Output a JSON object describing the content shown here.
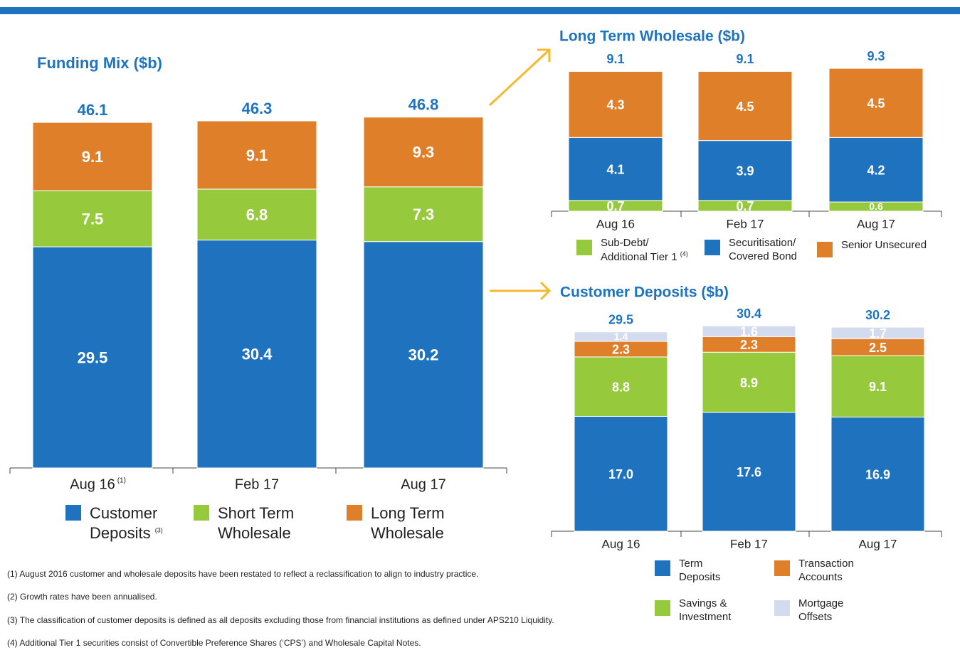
{
  "chart_data": [
    {
      "type": "stacked_bar",
      "title": "Funding Mix ($b)",
      "categories": [
        "Aug 16",
        "Feb 17",
        "Aug 17"
      ],
      "category_notes": [
        "(1)",
        null,
        null
      ],
      "totals": [
        46.1,
        46.3,
        46.8
      ],
      "series": [
        {
          "name": "Customer Deposits",
          "note": "(3)",
          "color": "#1f72bd",
          "values": [
            29.5,
            30.4,
            30.2
          ]
        },
        {
          "name": "Short Term Wholesale",
          "color": "#97c93d",
          "values": [
            7.5,
            6.8,
            7.3
          ]
        },
        {
          "name": "Long Term Wholesale",
          "color": "#e07f2a",
          "values": [
            9.1,
            9.1,
            9.3
          ]
        }
      ]
    },
    {
      "type": "stacked_bar",
      "title": "Long Term Wholesale ($b)",
      "categories": [
        "Aug 16",
        "Feb 17",
        "Aug 17"
      ],
      "totals": [
        9.1,
        9.1,
        9.3
      ],
      "series": [
        {
          "name": "Sub-Debt/ Additional Tier 1",
          "note": "(4)",
          "color": "#97c93d",
          "values": [
            0.7,
            0.7,
            0.6
          ]
        },
        {
          "name": "Securitisation/ Covered Bond",
          "color": "#1f72bd",
          "values": [
            4.1,
            3.9,
            4.2
          ]
        },
        {
          "name": "Senior Unsecured",
          "color": "#e07f2a",
          "values": [
            4.3,
            4.5,
            4.5
          ]
        }
      ]
    },
    {
      "type": "stacked_bar",
      "title": "Customer Deposits ($b)",
      "categories": [
        "Aug 16",
        "Feb 17",
        "Aug 17"
      ],
      "totals": [
        29.5,
        30.4,
        30.2
      ],
      "series": [
        {
          "name": "Term Deposits",
          "color": "#1f72bd",
          "values": [
            17.0,
            17.6,
            16.9
          ],
          "value_labels": [
            "17.0",
            "17.6",
            "16.9"
          ]
        },
        {
          "name": "Savings & Investment",
          "color": "#97c93d",
          "values": [
            8.8,
            8.9,
            9.1
          ]
        },
        {
          "name": "Transaction Accounts",
          "color": "#e07f2a",
          "values": [
            2.3,
            2.3,
            2.5
          ]
        },
        {
          "name": "Mortgage Offsets",
          "color": "#d3dbef",
          "values": [
            1.4,
            1.6,
            1.7
          ]
        }
      ]
    }
  ],
  "footnotes": [
    "(1) August 2016 customer and wholesale deposits have been restated to reflect a reclassification to align to industry practice.",
    "(2) Growth rates have been annualised.",
    "(3) The classification of customer deposits is defined as all deposits excluding those from financial institutions as defined under APS210 Liquidity.",
    "(4) Additional Tier 1 securities consist of Convertible Preference Shares (‘CPS’) and Wholesale Capital Notes."
  ]
}
